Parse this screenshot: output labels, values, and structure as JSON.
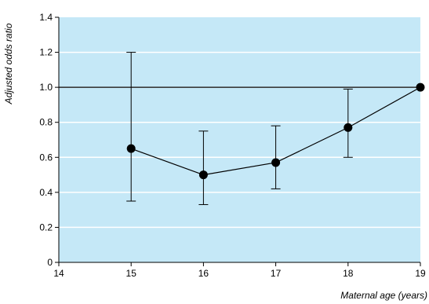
{
  "chart_data": {
    "type": "line",
    "title": "",
    "xlabel": "Maternal age (years)",
    "ylabel": "Adjusted odds ratio",
    "xlim": [
      14,
      19
    ],
    "ylim": [
      0,
      1.4
    ],
    "x_ticks": [
      "14",
      "15",
      "16",
      "17",
      "18",
      "19"
    ],
    "y_ticks": [
      "0",
      "0.2",
      "0.4",
      "0.6",
      "0.8",
      "1.0",
      "1.2",
      "1.4"
    ],
    "reference_line": 1.0,
    "grid": "horizontal",
    "series": [
      {
        "x": [
          15,
          16,
          17,
          18,
          19
        ],
        "y": [
          0.65,
          0.5,
          0.57,
          0.77,
          1.0
        ],
        "lower": [
          0.35,
          0.33,
          0.42,
          0.6,
          null
        ],
        "upper": [
          1.2,
          0.75,
          0.78,
          0.99,
          null
        ]
      }
    ],
    "colors": {
      "plot_background": "#c5e8f7",
      "gridline": "#ffffff",
      "reference_line": "#000000",
      "marker": "#000000",
      "line": "#000000"
    }
  }
}
